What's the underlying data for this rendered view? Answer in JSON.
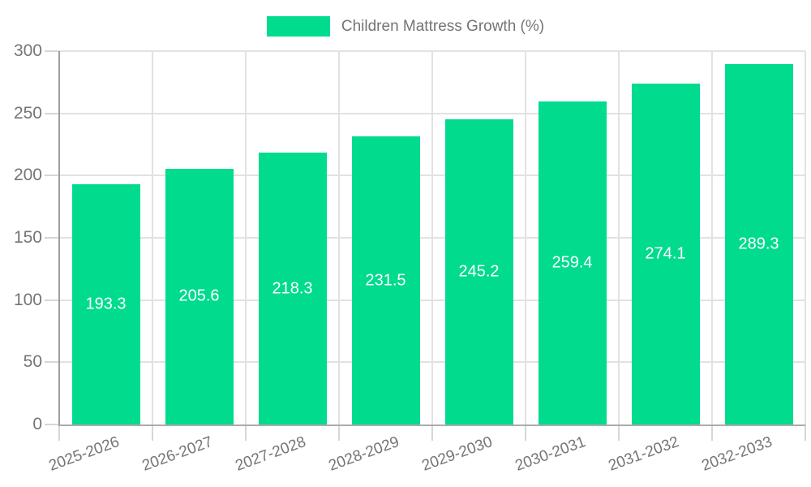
{
  "chart": {
    "legend": {
      "label": "Children Mattress Growth (%)"
    }
  },
  "chart_data": {
    "type": "bar",
    "title": "Children Mattress Growth (%)",
    "legend_position": "top",
    "categories": [
      "2025-2026",
      "2026-2027",
      "2027-2028",
      "2028-2029",
      "2029-2030",
      "2030-2031",
      "2031-2032",
      "2032-2033"
    ],
    "values": [
      193.3,
      205.6,
      218.3,
      231.5,
      245.2,
      259.4,
      274.1,
      289.3
    ],
    "value_labels": [
      "193.3",
      "205.6",
      "218.3",
      "231.5",
      "245.2",
      "259.4",
      "274.1",
      "289.3"
    ],
    "xlabel": "",
    "ylabel": "",
    "ylim": [
      0,
      300
    ],
    "y_ticks": [
      0,
      50,
      100,
      150,
      200,
      250,
      300
    ],
    "grid": true,
    "x_label_rotation_deg": -20,
    "colors": {
      "bar": "#00db8e",
      "value_label": "#ffffff",
      "axis_text": "#757575",
      "grid_line": "#e2e2e2",
      "axis_line": "#a6a6a6",
      "background": "#ffffff"
    }
  }
}
